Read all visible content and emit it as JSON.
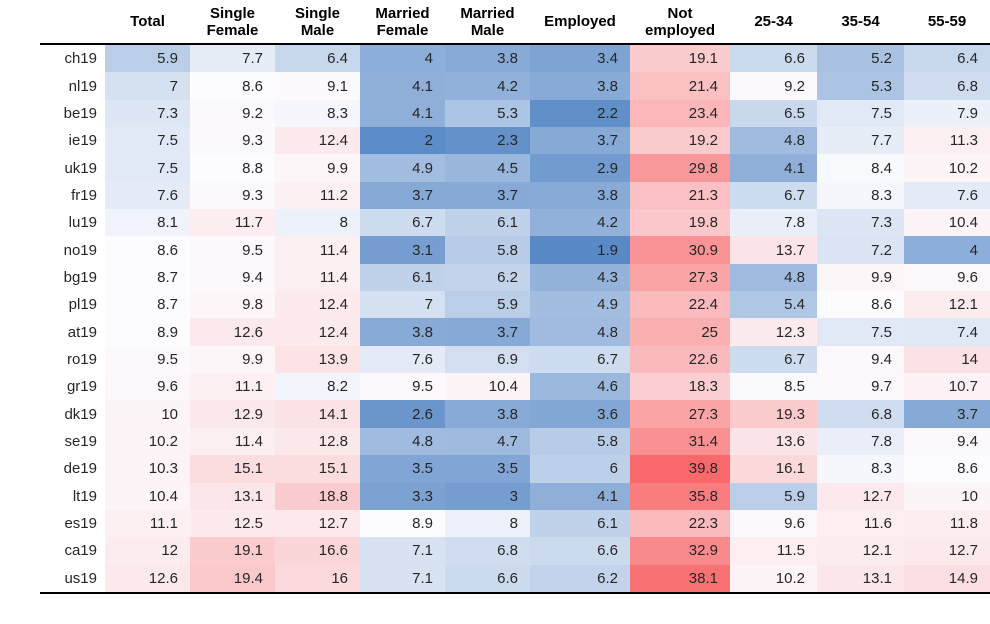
{
  "chart_data": {
    "type": "heatmap",
    "title": "",
    "legend": "none",
    "color_scale": {
      "low_color": "#5A8AC6",
      "mid_color": "#FCFCFF",
      "high_color": "#F8696B",
      "midpoint_rule": "50th percentile of all values",
      "min_value": 1.9,
      "max_value": 39.8
    },
    "columns": [
      {
        "key": "total",
        "lines": [
          "Total"
        ]
      },
      {
        "key": "single-female",
        "lines": [
          "Single",
          "Female"
        ]
      },
      {
        "key": "single-male",
        "lines": [
          "Single",
          "Male"
        ]
      },
      {
        "key": "married-female",
        "lines": [
          "Married",
          "Female"
        ]
      },
      {
        "key": "married-male",
        "lines": [
          "Married",
          "Male"
        ]
      },
      {
        "key": "employed",
        "lines": [
          "Employed"
        ]
      },
      {
        "key": "not-employed",
        "lines": [
          "Not",
          "employed"
        ]
      },
      {
        "key": "age-25-34",
        "lines": [
          "25-34"
        ]
      },
      {
        "key": "age-35-54",
        "lines": [
          "35-54"
        ]
      },
      {
        "key": "age-55-59",
        "lines": [
          "55-59"
        ]
      }
    ],
    "rows": [
      {
        "label": "ch19",
        "values": [
          5.9,
          7.7,
          6.4,
          4,
          3.8,
          3.4,
          19.1,
          6.6,
          5.2,
          6.4
        ]
      },
      {
        "label": "nl19",
        "values": [
          7,
          8.6,
          9.1,
          4.1,
          4.2,
          3.8,
          21.4,
          9.2,
          5.3,
          6.8
        ]
      },
      {
        "label": "be19",
        "values": [
          7.3,
          9.2,
          8.3,
          4.1,
          5.3,
          2.2,
          23.4,
          6.5,
          7.5,
          7.9
        ]
      },
      {
        "label": "ie19",
        "values": [
          7.5,
          9.3,
          12.4,
          2,
          2.3,
          3.7,
          19.2,
          4.8,
          7.7,
          11.3
        ]
      },
      {
        "label": "uk19",
        "values": [
          7.5,
          8.8,
          9.9,
          4.9,
          4.5,
          2.9,
          29.8,
          4.1,
          8.4,
          10.2
        ]
      },
      {
        "label": "fr19",
        "values": [
          7.6,
          9.3,
          11.2,
          3.7,
          3.7,
          3.8,
          21.3,
          6.7,
          8.3,
          7.6
        ]
      },
      {
        "label": "lu19",
        "values": [
          8.1,
          11.7,
          8,
          6.7,
          6.1,
          4.2,
          19.8,
          7.8,
          7.3,
          10.4
        ]
      },
      {
        "label": "no19",
        "values": [
          8.6,
          9.5,
          11.4,
          3.1,
          5.8,
          1.9,
          30.9,
          13.7,
          7.2,
          4
        ]
      },
      {
        "label": "bg19",
        "values": [
          8.7,
          9.4,
          11.4,
          6.1,
          6.2,
          4.3,
          27.3,
          4.8,
          9.9,
          9.6
        ]
      },
      {
        "label": "pl19",
        "values": [
          8.7,
          9.8,
          12.4,
          7,
          5.9,
          4.9,
          22.4,
          5.4,
          8.6,
          12.1
        ]
      },
      {
        "label": "at19",
        "values": [
          8.9,
          12.6,
          12.4,
          3.8,
          3.7,
          4.8,
          25,
          12.3,
          7.5,
          7.4
        ]
      },
      {
        "label": "ro19",
        "values": [
          9.5,
          9.9,
          13.9,
          7.6,
          6.9,
          6.7,
          22.6,
          6.7,
          9.4,
          14
        ]
      },
      {
        "label": "gr19",
        "values": [
          9.6,
          11.1,
          8.2,
          9.5,
          10.4,
          4.6,
          18.3,
          8.5,
          9.7,
          10.7
        ]
      },
      {
        "label": "dk19",
        "values": [
          10,
          12.9,
          14.1,
          2.6,
          3.8,
          3.6,
          27.3,
          19.3,
          6.8,
          3.7
        ]
      },
      {
        "label": "se19",
        "values": [
          10.2,
          11.4,
          12.8,
          4.8,
          4.7,
          5.8,
          31.4,
          13.6,
          7.8,
          9.4
        ]
      },
      {
        "label": "de19",
        "values": [
          10.3,
          15.1,
          15.1,
          3.5,
          3.5,
          6,
          39.8,
          16.1,
          8.3,
          8.6
        ]
      },
      {
        "label": "lt19",
        "values": [
          10.4,
          13.1,
          18.8,
          3.3,
          3,
          4.1,
          35.8,
          5.9,
          12.7,
          10
        ]
      },
      {
        "label": "es19",
        "values": [
          11.1,
          12.5,
          12.7,
          8.9,
          8,
          6.1,
          22.3,
          9.6,
          11.6,
          11.8
        ]
      },
      {
        "label": "ca19",
        "values": [
          12,
          19.1,
          16.6,
          7.1,
          6.8,
          6.6,
          32.9,
          11.5,
          12.1,
          12.7
        ]
      },
      {
        "label": "us19",
        "values": [
          12.6,
          19.4,
          16,
          7.1,
          6.6,
          6.2,
          38.1,
          10.2,
          13.1,
          14.9
        ]
      }
    ]
  }
}
